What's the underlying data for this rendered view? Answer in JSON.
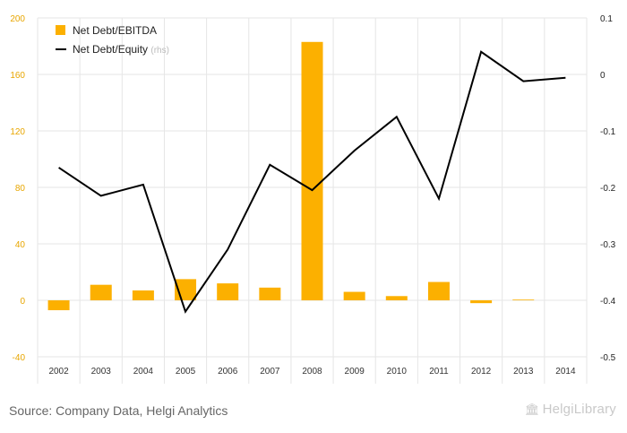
{
  "chart_data": {
    "type": "bar",
    "categories": [
      "2002",
      "2003",
      "2004",
      "2005",
      "2006",
      "2007",
      "2008",
      "2009",
      "2010",
      "2011",
      "2012",
      "2013",
      "2014"
    ],
    "series": [
      {
        "name": "Net Debt/EBITDA",
        "type": "bar",
        "axis": "left",
        "color": "#FCB000",
        "values": [
          -7,
          11,
          7,
          15,
          12,
          9,
          183,
          6,
          3,
          13,
          -2,
          0.5,
          null
        ]
      },
      {
        "name": "Net Debt/Equity",
        "type": "line",
        "axis": "right",
        "color": "#000000",
        "values": [
          -0.165,
          -0.215,
          -0.195,
          -0.42,
          -0.31,
          -0.16,
          -0.205,
          -0.135,
          -0.075,
          -0.22,
          0.04,
          -0.012,
          -0.006
        ]
      }
    ],
    "legend": {
      "position": "top-left",
      "items": [
        {
          "label": "Net Debt/EBITDA",
          "suffix": ""
        },
        {
          "label": "Net Debt/Equity",
          "suffix": "(rhs)"
        }
      ]
    },
    "y_left": {
      "ticks": [
        "200",
        "160",
        "120",
        "80",
        "40",
        "0",
        "-40"
      ],
      "ylim": [
        -40,
        200
      ],
      "tick_color": "#E8A600"
    },
    "y_right": {
      "ticks": [
        "0.1",
        "0",
        "-0.1",
        "-0.2",
        "-0.3",
        "-0.4",
        "-0.5"
      ],
      "ylim": [
        -0.5,
        0.1
      ]
    },
    "grid": true
  },
  "footer": {
    "source": "Source: Company Data, Helgi Analytics",
    "brand": "HelgiLibrary"
  }
}
